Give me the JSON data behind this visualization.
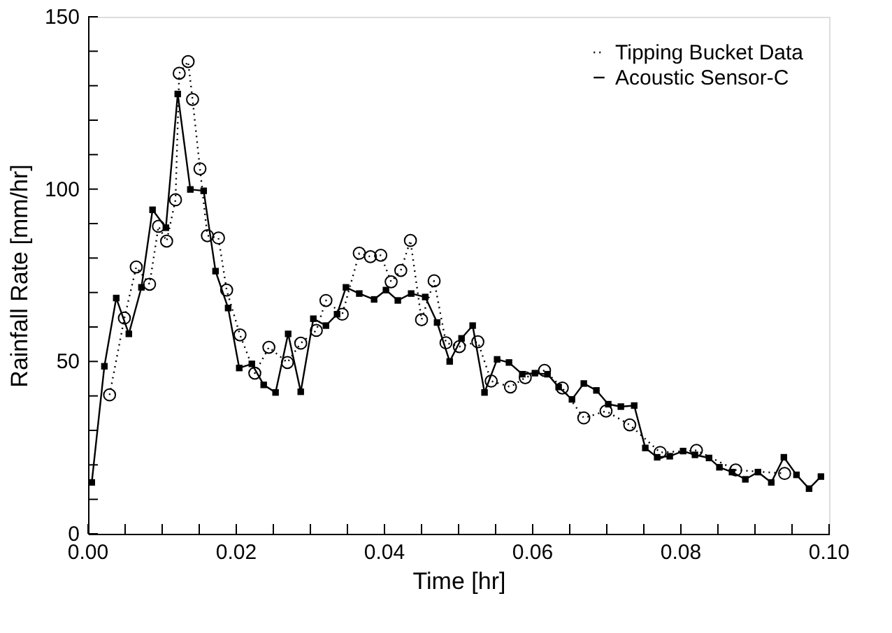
{
  "chart_data": {
    "type": "line",
    "xlabel": "Time [hr]",
    "ylabel": "Rainfall Rate [mm/hr]",
    "xlim": [
      0,
      0.1
    ],
    "ylim": [
      0,
      150
    ],
    "xticks": [
      {
        "value": 0,
        "label": "0.00"
      },
      {
        "value": 0.005,
        "label": null
      },
      {
        "value": 0.01,
        "label": null
      },
      {
        "value": 0.015,
        "label": null
      },
      {
        "value": 0.02,
        "label": "0.02"
      },
      {
        "value": 0.025,
        "label": null
      },
      {
        "value": 0.03,
        "label": null
      },
      {
        "value": 0.035,
        "label": null
      },
      {
        "value": 0.04,
        "label": "0.04"
      },
      {
        "value": 0.045,
        "label": null
      },
      {
        "value": 0.05,
        "label": null
      },
      {
        "value": 0.055,
        "label": null
      },
      {
        "value": 0.06,
        "label": "0.06"
      },
      {
        "value": 0.065,
        "label": null
      },
      {
        "value": 0.07,
        "label": null
      },
      {
        "value": 0.075,
        "label": null
      },
      {
        "value": 0.08,
        "label": "0.08"
      },
      {
        "value": 0.085,
        "label": null
      },
      {
        "value": 0.09,
        "label": null
      },
      {
        "value": 0.095,
        "label": null
      },
      {
        "value": 0.1,
        "label": "0.10"
      }
    ],
    "yticks": [
      0,
      {
        "value": 10,
        "label": null
      },
      {
        "value": 20,
        "label": null
      },
      {
        "value": 30,
        "label": null
      },
      {
        "value": 40,
        "label": null
      },
      50,
      {
        "value": 60,
        "label": null
      },
      {
        "value": 70,
        "label": null
      },
      {
        "value": 80,
        "label": null
      },
      {
        "value": 90,
        "label": null
      },
      100,
      {
        "value": 110,
        "label": null
      },
      {
        "value": 120,
        "label": null
      },
      {
        "value": 130,
        "label": null
      },
      {
        "value": 140,
        "label": null
      },
      150
    ],
    "grid": false,
    "legend": "top right",
    "series": [
      {
        "name": "Tipping Bucket Data",
        "color": "#000000",
        "marker": "circle",
        "line_style": "dotted",
        "x": [
          0.0029,
          0.0049,
          0.0065,
          0.0083,
          0.0095,
          0.0106,
          0.0118,
          0.0123,
          0.0135,
          0.0141,
          0.0151,
          0.0161,
          0.0176,
          0.0187,
          0.0205,
          0.0225,
          0.0244,
          0.0269,
          0.0287,
          0.0308,
          0.0321,
          0.0343,
          0.0366,
          0.0381,
          0.0395,
          0.0409,
          0.0422,
          0.0435,
          0.045,
          0.0467,
          0.0483,
          0.0501,
          0.0526,
          0.0544,
          0.057,
          0.059,
          0.0616,
          0.064,
          0.0669,
          0.0699,
          0.0731,
          0.0772,
          0.0821,
          0.0874,
          0.094
        ],
        "values": [
          40.3,
          62.6,
          77.4,
          72.4,
          89.2,
          84.9,
          96.9,
          133.6,
          137,
          126,
          105.9,
          86.5,
          85.8,
          70.7,
          57.7,
          46.6,
          54.1,
          49.7,
          55.3,
          59,
          67.7,
          63.7,
          81.4,
          80.4,
          80.8,
          73.1,
          76.4,
          85.1,
          62.1,
          73.4,
          55.4,
          54.3,
          55.7,
          44.3,
          42.6,
          45.3,
          47.4,
          42.3,
          33.6,
          35.6,
          31.6,
          23.6,
          24.2,
          18.5,
          17.5
        ]
      },
      {
        "name": "Acoustic Sensor-C",
        "color": "#000000",
        "marker": "square",
        "line_style": "solid",
        "x": [
          0.0005,
          0.0022,
          0.0038,
          0.0055,
          0.0072,
          0.0087,
          0.0105,
          0.0121,
          0.0138,
          0.0156,
          0.0172,
          0.0189,
          0.0204,
          0.0221,
          0.0237,
          0.0253,
          0.027,
          0.0287,
          0.0304,
          0.0321,
          0.0336,
          0.0348,
          0.0366,
          0.0386,
          0.0402,
          0.0418,
          0.0436,
          0.0455,
          0.0471,
          0.0488,
          0.0504,
          0.0519,
          0.0535,
          0.0552,
          0.0568,
          0.0586,
          0.0603,
          0.062,
          0.0635,
          0.0653,
          0.0669,
          0.0686,
          0.0702,
          0.0719,
          0.0737,
          0.0752,
          0.0768,
          0.0785,
          0.0803,
          0.0819,
          0.0838,
          0.0852,
          0.0869,
          0.0887,
          0.0904,
          0.0922,
          0.0939,
          0.0956,
          0.0973,
          0.0989
        ],
        "values": [
          14.9,
          48.6,
          68.4,
          58,
          71.5,
          94,
          88.8,
          127.6,
          99.9,
          99.5,
          76.2,
          65.5,
          48.1,
          49.3,
          43.2,
          41,
          58,
          41.2,
          62.4,
          60.4,
          63.7,
          71.5,
          69.7,
          68,
          70.7,
          67.7,
          69.7,
          68.7,
          61.3,
          50,
          56.7,
          60.4,
          41,
          50.6,
          49.7,
          46.3,
          46.6,
          46.3,
          42.6,
          39,
          43.6,
          41.6,
          37.6,
          36.9,
          37.2,
          24.9,
          22.2,
          22.5,
          24,
          22.9,
          22,
          19.3,
          17.9,
          15.8,
          17.9,
          14.9,
          22.2,
          17.1,
          13.1,
          16.6
        ]
      }
    ]
  }
}
